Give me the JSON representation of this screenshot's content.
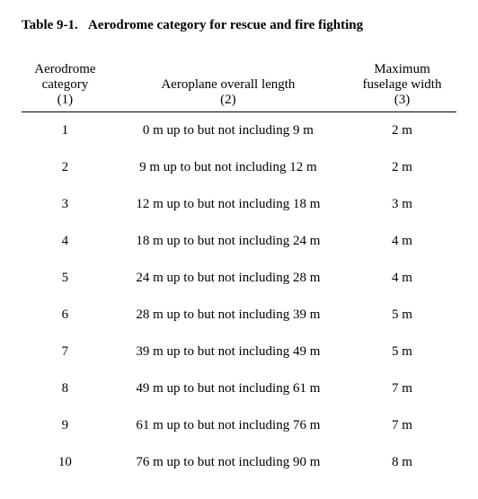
{
  "title_label": "Table 9-1.",
  "title_text": "Aerodrome category for rescue and fire fighting",
  "columns": [
    {
      "line1": "Aerodrome",
      "line2": "category",
      "num": "(1)"
    },
    {
      "line1": "",
      "line2": "Aeroplane overall length",
      "num": "(2)"
    },
    {
      "line1": "Maximum",
      "line2": "fuselage width",
      "num": "(3)"
    }
  ],
  "rows": [
    {
      "cat": "1",
      "length": "0 m up to but not including  9 m",
      "width": "2 m"
    },
    {
      "cat": "2",
      "length": "9 m up to but not including 12 m",
      "width": "2 m"
    },
    {
      "cat": "3",
      "length": "12 m up to but not including 18 m",
      "width": "3 m"
    },
    {
      "cat": "4",
      "length": "18 m up to but not including 24 m",
      "width": "4 m"
    },
    {
      "cat": "5",
      "length": "24 m up to but not including 28 m",
      "width": "4 m"
    },
    {
      "cat": "6",
      "length": "28 m up to but not including 39 m",
      "width": "5 m"
    },
    {
      "cat": "7",
      "length": "39 m up to but not including 49 m",
      "width": "5 m"
    },
    {
      "cat": "8",
      "length": "49 m up to but not including 61 m",
      "width": "7 m"
    },
    {
      "cat": "9",
      "length": "61 m up to but not including 76 m",
      "width": "7 m"
    },
    {
      "cat": "10",
      "length": "76 m up to but not including 90 m",
      "width": "8 m"
    }
  ]
}
